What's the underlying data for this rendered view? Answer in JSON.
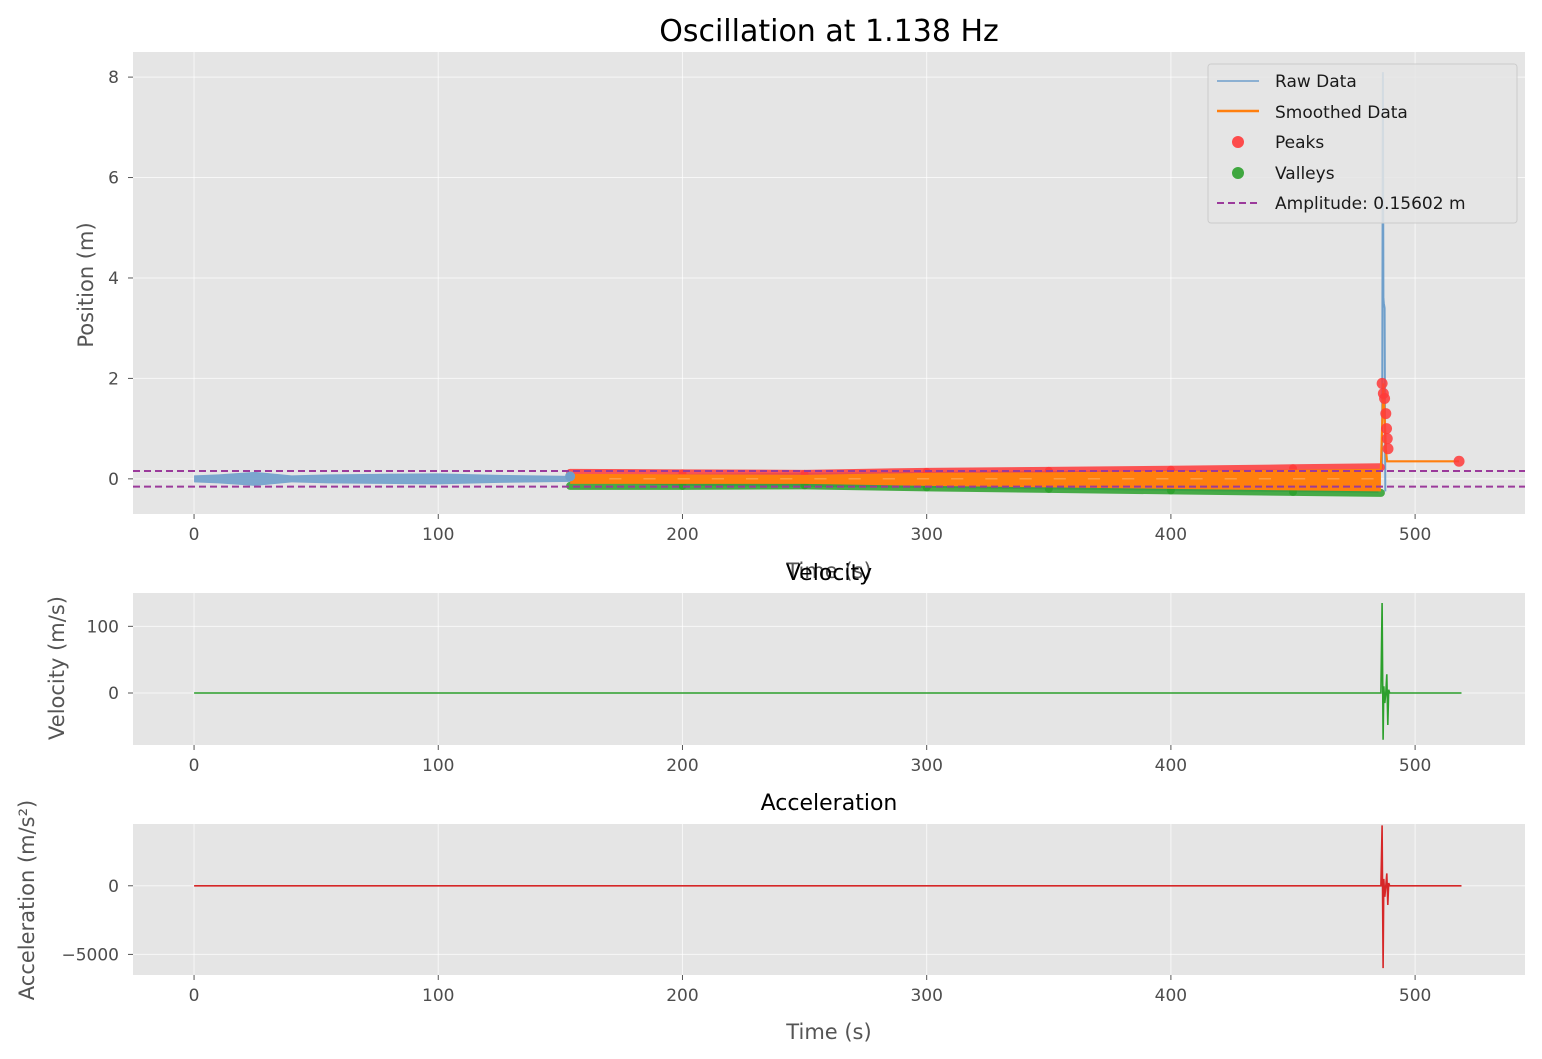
{
  "colors": {
    "background": "#e5e5e5",
    "grid": "#ffffff",
    "raw": "#6f9fcb",
    "smoothed": "#ff7f0e",
    "peaks": "#ff3a3a",
    "valleys": "#2ca02c",
    "amplitude": "#9b3a9b",
    "velocity": "#2ca02c",
    "acceleration": "#d62728"
  },
  "chart_data": [
    {
      "type": "line",
      "title": "Oscillation at 1.138 Hz",
      "xlabel": "Time (s)",
      "ylabel": "Position (m)",
      "xlim": [
        -25,
        545
      ],
      "ylim": [
        -0.7,
        8.5
      ],
      "xticks": [
        0,
        100,
        200,
        300,
        400,
        500
      ],
      "yticks": [
        0,
        2,
        4,
        6,
        8
      ],
      "grid": true,
      "legend_position": "top-right",
      "legend": [
        "Raw Data",
        "Smoothed Data",
        "Peaks",
        "Valleys",
        "Amplitude: 0.15602 m"
      ],
      "series": [
        {
          "name": "Raw Data",
          "kind": "band",
          "x": [
            0,
            10,
            25,
            40,
            55,
            75,
            100,
            125,
            154,
            200,
            300,
            400,
            485
          ],
          "upper": [
            0.07,
            0.09,
            0.14,
            0.07,
            0.09,
            0.1,
            0.11,
            0.08,
            0.06,
            0.1,
            0.14,
            0.17,
            0.2
          ],
          "lower": [
            -0.07,
            -0.09,
            -0.14,
            -0.07,
            -0.09,
            -0.1,
            -0.11,
            -0.08,
            -0.06,
            -0.14,
            -0.18,
            -0.24,
            -0.28
          ],
          "spike": {
            "x": [
              486.5,
              486.8,
              487.0,
              487.2,
              487.5,
              487.8
            ],
            "y": [
              0.2,
              8.1,
              3.6,
              3.5,
              3.4,
              -0.25
            ]
          }
        },
        {
          "name": "Smoothed Data",
          "kind": "band",
          "x": [
            154,
            200,
            250,
            300,
            350,
            400,
            450,
            486
          ],
          "upper": [
            0.1,
            0.09,
            0.08,
            0.12,
            0.13,
            0.16,
            0.18,
            0.2
          ],
          "lower": [
            -0.1,
            -0.1,
            -0.1,
            -0.14,
            -0.17,
            -0.2,
            -0.23,
            -0.25
          ],
          "tail": {
            "x": [
              486,
              487,
              488,
              488.5,
              490,
              518
            ],
            "y": [
              0.2,
              1.9,
              0.6,
              0.35,
              0.35,
              0.35
            ]
          }
        },
        {
          "name": "Peaks",
          "kind": "band_edge",
          "x": [
            154,
            200,
            250,
            300,
            350,
            400,
            450,
            486
          ],
          "y": [
            0.12,
            0.11,
            0.1,
            0.14,
            0.16,
            0.18,
            0.21,
            0.23
          ],
          "extra_points": [
            [
              486.5,
              1.9
            ],
            [
              487,
              1.7
            ],
            [
              487.5,
              1.6
            ],
            [
              488,
              1.3
            ],
            [
              488.3,
              1.0
            ],
            [
              488.6,
              0.8
            ],
            [
              488.9,
              0.6
            ],
            [
              518,
              0.35
            ]
          ]
        },
        {
          "name": "Valleys",
          "kind": "band_edge",
          "x": [
            154,
            200,
            250,
            300,
            350,
            400,
            450,
            486
          ],
          "y": [
            -0.14,
            -0.14,
            -0.13,
            -0.17,
            -0.2,
            -0.23,
            -0.26,
            -0.28
          ]
        },
        {
          "name": "Amplitude: 0.15602 m",
          "kind": "hline",
          "y": [
            0.15602,
            -0.15602
          ]
        }
      ]
    },
    {
      "type": "line",
      "title": "Velocity",
      "xlabel": "Time (s)",
      "ylabel": "Velocity (m/s)",
      "xlim": [
        -25,
        545
      ],
      "ylim": [
        -78,
        150
      ],
      "xticks": [
        0,
        100,
        200,
        300,
        400,
        500
      ],
      "yticks": [
        0,
        100
      ],
      "grid": true,
      "series": [
        {
          "kind": "line",
          "x": [
            0,
            486,
            486.5,
            486.9,
            487.2,
            487.6,
            488.0,
            488.4,
            488.8,
            489.2,
            489.6,
            519
          ],
          "y": [
            0,
            0,
            135,
            -70,
            10,
            -15,
            0,
            28,
            -48,
            5,
            0,
            0
          ]
        }
      ]
    },
    {
      "type": "line",
      "title": "Acceleration",
      "xlabel": "Time (s)",
      "ylabel": "Acceleration (m/s²)",
      "xlim": [
        -25,
        545
      ],
      "ylim": [
        -6500,
        4500
      ],
      "xticks": [
        0,
        100,
        200,
        300,
        400,
        500
      ],
      "yticks": [
        -5000,
        0
      ],
      "ytick_labels": [
        "−5000",
        "0"
      ],
      "grid": true,
      "series": [
        {
          "kind": "line",
          "x": [
            0,
            486,
            486.5,
            486.9,
            487.2,
            487.6,
            488.0,
            488.4,
            488.8,
            489.2,
            489.6,
            519
          ],
          "y": [
            0,
            0,
            4400,
            -6000,
            500,
            -800,
            0,
            900,
            -1400,
            200,
            0,
            0
          ]
        }
      ]
    }
  ]
}
